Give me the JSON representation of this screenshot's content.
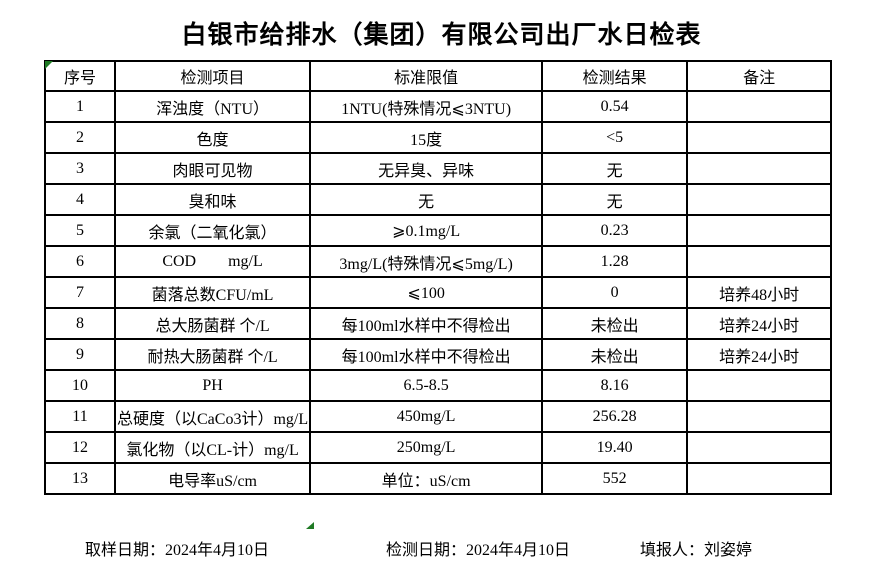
{
  "title": "白银市给排水（集团）有限公司出厂水日检表",
  "table": {
    "headers": [
      "序号",
      "检测项目",
      "标准限值",
      "检测结果",
      "备注"
    ],
    "rows": [
      {
        "no": "1",
        "item": "浑浊度（NTU）",
        "limit": "1NTU(特殊情况⩽3NTU)",
        "result": "0.54",
        "remark": ""
      },
      {
        "no": "2",
        "item": "色度",
        "limit": "15度",
        "result": "<5",
        "remark": ""
      },
      {
        "no": "3",
        "item": "肉眼可见物",
        "limit": "无异臭、异味",
        "result": "无",
        "remark": ""
      },
      {
        "no": "4",
        "item": "臭和味",
        "limit": "无",
        "result": "无",
        "remark": ""
      },
      {
        "no": "5",
        "item": "余氯（二氧化氯）",
        "limit": "⩾0.1mg/L",
        "result": "0.23",
        "remark": ""
      },
      {
        "no": "6",
        "item": "COD        mg/L",
        "limit": "3mg/L(特殊情况⩽5mg/L)",
        "result": "1.28",
        "remark": ""
      },
      {
        "no": "7",
        "item": "菌落总数CFU/mL",
        "limit": "⩽100",
        "result": "0",
        "remark": "培养48小时"
      },
      {
        "no": "8",
        "item": "总大肠菌群 个/L",
        "limit": "每100ml水样中不得检出",
        "result": "未检出",
        "remark": "培养24小时"
      },
      {
        "no": "9",
        "item": "耐热大肠菌群 个/L",
        "limit": "每100ml水样中不得检出",
        "result": "未检出",
        "remark": "培养24小时"
      },
      {
        "no": "10",
        "item": "PH",
        "limit": "6.5-8.5",
        "result": "8.16",
        "remark": ""
      },
      {
        "no": "11",
        "item": "总硬度（以CaCo3计）mg/L",
        "limit": "450mg/L",
        "result": "256.28",
        "remark": ""
      },
      {
        "no": "12",
        "item": "氯化物（以CL-计）mg/L",
        "limit": "250mg/L",
        "result": "19.40",
        "remark": ""
      },
      {
        "no": "13",
        "item": "电导率uS/cm",
        "limit": "单位：uS/cm",
        "result": "552",
        "remark": ""
      }
    ]
  },
  "footer": {
    "sample_date": "取样日期：2024年4月10日",
    "test_date": "检测日期：2024年4月10日",
    "reporter": "填报人：刘姿婷"
  },
  "colors": {
    "border": "#000000",
    "text": "#000000",
    "background": "#ffffff",
    "indicator_green": "#1f7a24"
  }
}
